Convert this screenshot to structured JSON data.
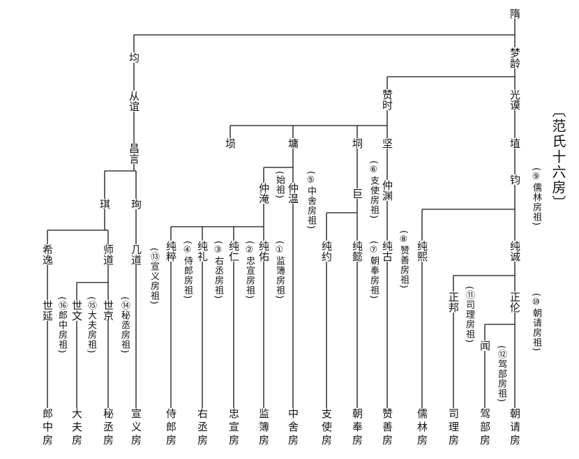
{
  "title": "〔范氏十六房〕",
  "nodes": [
    {
      "label": "隋"
    },
    {
      "label": "均"
    },
    {
      "label": "梦龄"
    },
    {
      "label": "从谊"
    },
    {
      "label": "昌言"
    },
    {
      "label": "琪"
    },
    {
      "label": "珣"
    },
    {
      "label": "希逸"
    },
    {
      "label": "师道"
    },
    {
      "label": "几道"
    },
    {
      "label": "世延"
    },
    {
      "label": "世文"
    },
    {
      "label": "世京"
    },
    {
      "label": "郎中房"
    },
    {
      "label": "大夫房"
    },
    {
      "label": "秘丞房"
    },
    {
      "label": "宣义房"
    },
    {
      "label": "赞时"
    },
    {
      "label": "光谟"
    },
    {
      "label": "埙"
    },
    {
      "label": "墉"
    },
    {
      "label": "垌"
    },
    {
      "label": "坚"
    },
    {
      "label": "埴"
    },
    {
      "label": "钧"
    },
    {
      "label": "仲淹"
    },
    {
      "label": "仲温"
    },
    {
      "label": "巨"
    },
    {
      "label": "仲渊"
    },
    {
      "label": "纯粹"
    },
    {
      "label": "纯礼"
    },
    {
      "label": "纯仁"
    },
    {
      "label": "纯佑"
    },
    {
      "label": "纯约"
    },
    {
      "label": "纯懿"
    },
    {
      "label": "纯古"
    },
    {
      "label": "纯熙"
    },
    {
      "label": "纯诚"
    },
    {
      "label": "正邦"
    },
    {
      "label": "正伦"
    },
    {
      "label": "闻"
    },
    {
      "label": "侍郎房"
    },
    {
      "label": "右丞房"
    },
    {
      "label": "忠宣房"
    },
    {
      "label": "监簿房"
    },
    {
      "label": "中舍房"
    },
    {
      "label": "支使房"
    },
    {
      "label": "朝奉房"
    },
    {
      "label": "赞善房"
    },
    {
      "label": "儒林房"
    },
    {
      "label": "司理房"
    },
    {
      "label": "驾部房"
    },
    {
      "label": "朝请房"
    }
  ],
  "notes": [
    "(⑯郎中房祖)",
    "(⑮大夫房祖)",
    "(⑭秘丞房祖)",
    "(⑬宣义房祖)",
    "(④侍郎房祖)",
    "(③右丞房祖)",
    "(②忠宣房祖)",
    "(①监簿房祖)",
    "(始祖)",
    "(⑤中舍房祖)",
    "(⑥支使房祖)",
    "(⑦朝奉房祖)",
    "(⑧赞善房祖)",
    "(⑨儒林房祖)",
    "(⑩朝请房祖)",
    "(⑪司理房祖)",
    "(⑫驾部房祖)"
  ]
}
